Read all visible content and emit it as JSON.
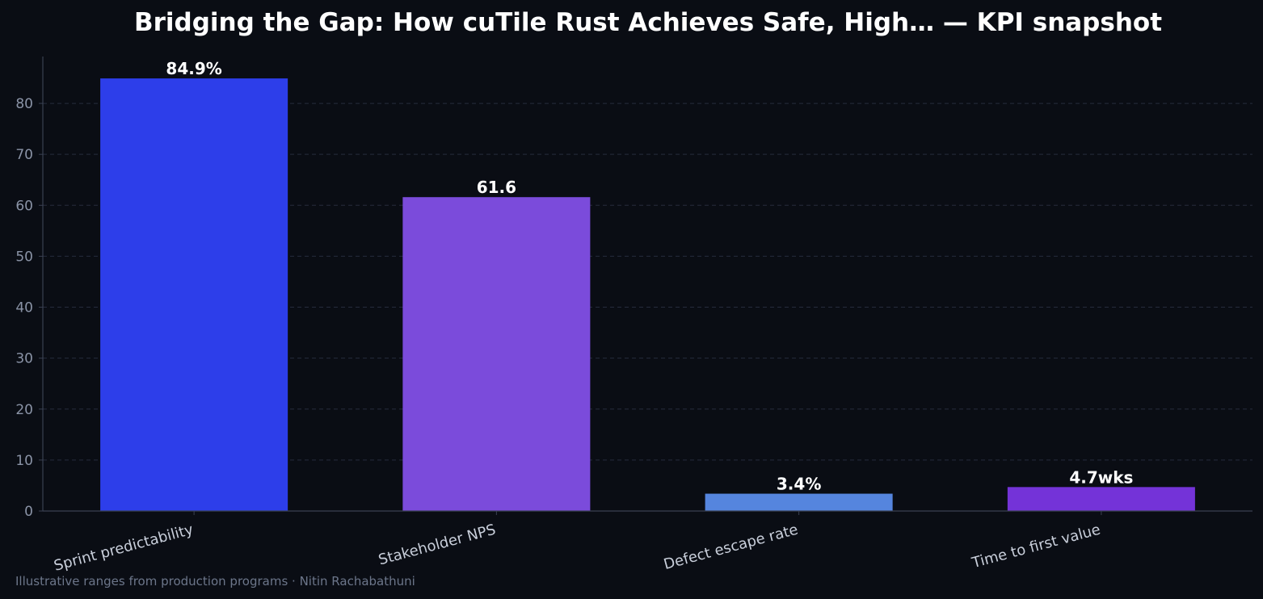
{
  "chart_data": {
    "type": "bar",
    "title": "Bridging the Gap: How cuTile Rust Achieves Safe, High… — KPI snapshot",
    "categories": [
      "Sprint predictability",
      "Stakeholder NPS",
      "Defect escape rate",
      "Time to first value"
    ],
    "values": [
      84.9,
      61.6,
      3.4,
      4.7
    ],
    "value_labels": [
      "84.9%",
      "61.6",
      "3.4%",
      "4.7wks"
    ],
    "bar_colors": [
      "#2d3eea",
      "#7b4bdb",
      "#5585de",
      "#7433d8"
    ],
    "xlabel": "",
    "ylabel": "",
    "ylim": [
      0,
      89.2
    ],
    "yticks": [
      0,
      10,
      20,
      30,
      40,
      50,
      60,
      70,
      80
    ],
    "grid": true,
    "footnote": "Illustrative ranges from production programs · Nitin Rachabathuni"
  },
  "colors": {
    "background": "#0a0d14",
    "axis": "#3a4152",
    "grid": "#262c3c",
    "text": "#ffffff"
  }
}
